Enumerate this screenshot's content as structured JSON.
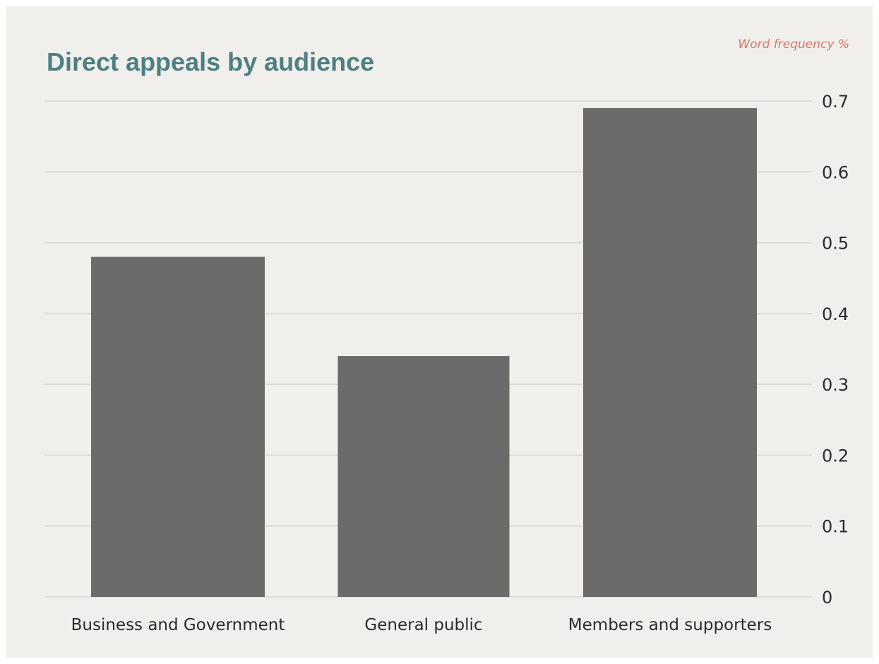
{
  "chart_data": {
    "type": "bar",
    "title": "Direct appeals by audience",
    "ylabel": "Word frequency %",
    "categories": [
      "Business and Government",
      "General public",
      "Members and supporters"
    ],
    "values": [
      0.48,
      0.34,
      0.69
    ],
    "ylim": [
      0,
      0.7
    ],
    "yticks": [
      "0",
      "0.1",
      "0.2",
      "0.3",
      "0.4",
      "0.5",
      "0.6",
      "0.7"
    ],
    "y_axis_side": "right",
    "grid": true,
    "legend": "none",
    "colors": {
      "bar": "#6b6b6b",
      "title": "#4f7f83",
      "unit_label": "#d9776b",
      "grid": "#dedcd7",
      "background": "#f0efeb"
    }
  }
}
